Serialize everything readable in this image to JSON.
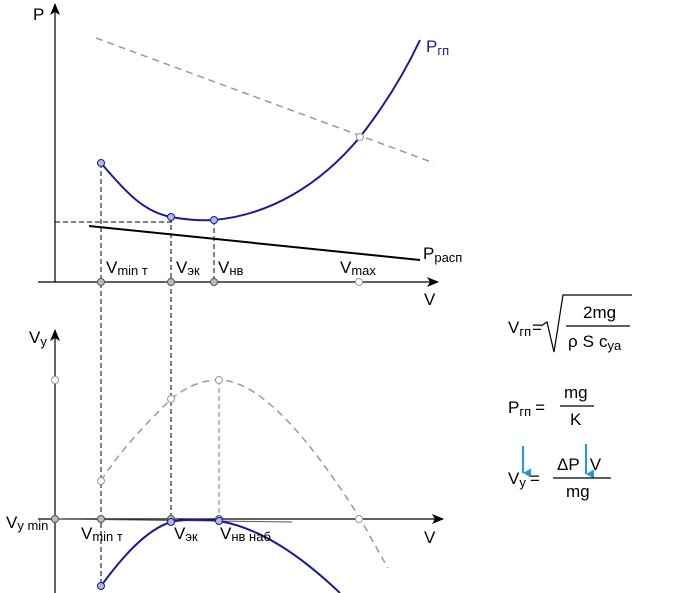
{
  "top": {
    "axis_y": "P",
    "axis_x": "V",
    "curve_required": {
      "main": "P",
      "sub": "гп"
    },
    "curve_available": {
      "main": "P",
      "sub": "расп"
    },
    "speeds": [
      {
        "main": "V",
        "sub": "min т"
      },
      {
        "main": "V",
        "sub": "эк"
      },
      {
        "main": "V",
        "sub": "нв"
      },
      {
        "main": "V",
        "sub": "max"
      }
    ]
  },
  "bottom": {
    "axis_y": {
      "main": "V",
      "sub": "y"
    },
    "axis_x": "V",
    "vy_min": {
      "main": "V",
      "sub": "y min"
    },
    "speeds": [
      {
        "main": "V",
        "sub": "min т"
      },
      {
        "main": "V",
        "sub": "эк"
      },
      {
        "main": "V",
        "sub": "нв наб"
      }
    ]
  },
  "formulas": {
    "f1": {
      "lhs_main": "V",
      "lhs_sub": "гп",
      "eq": "=",
      "numerator": "2mg",
      "den_rho": "ρ",
      "den_s": "S",
      "den_c": "c",
      "den_c_sub": "ya"
    },
    "f2": {
      "lhs_main": "P",
      "lhs_sub": "гп",
      "eq": "=",
      "numerator": "mg",
      "denominator": "K"
    },
    "f3": {
      "lhs_main": "V",
      "lhs_sub": "y",
      "eq": "=",
      "num_delta": "ΔP",
      "num_v": "V",
      "denominator": "mg"
    }
  },
  "colors": {
    "curve": "#1a1a99",
    "dashed": "#999999",
    "point_fill": "#b5b5e8",
    "arrow_blue": "#1e9be0"
  }
}
